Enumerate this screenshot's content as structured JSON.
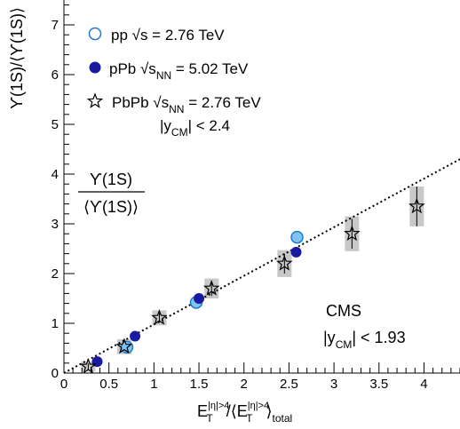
{
  "chart_data": {
    "type": "scatter",
    "title": "",
    "xlabel": {
      "base": "E",
      "sub": "T",
      "sup": "|η|>4",
      "mid": "/⟨E",
      "sub2": "T",
      "sup2": "|η|>4",
      "close": "⟩",
      "sub3": "total"
    },
    "ylabel": "ϒ(1S)/⟨ϒ(1S)⟩",
    "inset_label": {
      "numerator": "ϒ(1S)",
      "denominator": "⟨ϒ(1S)⟩"
    },
    "xlim": [
      0,
      4.4
    ],
    "ylim": [
      0,
      7.5
    ],
    "x_ticks": [
      "0",
      "0.5",
      "1",
      "1.5",
      "2",
      "2.5",
      "3",
      "3.5",
      "4"
    ],
    "y_ticks": [
      "0",
      "1",
      "2",
      "3",
      "4",
      "5",
      "6",
      "7"
    ],
    "legend_position": "top-left",
    "series": [
      {
        "name": "pp",
        "name_extra": "√s = 2.76 TeV",
        "marker": "open-circle",
        "color": "#1f78c8",
        "fill": "#7fc4f0",
        "points": [
          {
            "x": 0.7,
            "y": 0.52
          },
          {
            "x": 1.47,
            "y": 1.42
          },
          {
            "x": 2.59,
            "y": 2.73
          }
        ]
      },
      {
        "name": "pPb",
        "name_extra_prefix": "√s",
        "name_extra_sub": "NN",
        "name_extra_suffix": " = 5.02 TeV",
        "marker": "filled-circle",
        "color": "#1a1aa0",
        "points": [
          {
            "x": 0.37,
            "y": 0.23
          },
          {
            "x": 0.79,
            "y": 0.74
          },
          {
            "x": 1.5,
            "y": 1.5
          },
          {
            "x": 2.58,
            "y": 2.43
          }
        ]
      },
      {
        "name": "PbPb",
        "name_extra_prefix": "√s",
        "name_extra_sub": "NN",
        "name_extra_suffix": " = 2.76 TeV",
        "name_line2_prefix": "|y",
        "name_line2_sub": "CM",
        "name_line2_suffix": "| < 2.4",
        "marker": "open-star",
        "color": "#000000",
        "points": [
          {
            "x": 0.27,
            "y": 0.13,
            "yerr": 0.06,
            "syst": 0.1
          },
          {
            "x": 0.67,
            "y": 0.53,
            "yerr": 0.08,
            "syst": 0.15
          },
          {
            "x": 1.06,
            "y": 1.11,
            "yerr": 0.1,
            "syst": 0.15
          },
          {
            "x": 1.64,
            "y": 1.7,
            "yerr": 0.15,
            "syst": 0.2
          },
          {
            "x": 2.45,
            "y": 2.2,
            "yerr": 0.2,
            "syst": 0.27
          },
          {
            "x": 3.2,
            "y": 2.8,
            "yerr": 0.3,
            "syst": 0.35
          },
          {
            "x": 3.92,
            "y": 3.35,
            "yerr": 0.4,
            "syst": 0.4
          }
        ]
      }
    ],
    "fit_line": {
      "style": "dotted",
      "x": [
        0,
        4.4
      ],
      "y": [
        0,
        4.3
      ]
    },
    "annotations": {
      "experiment": "CMS",
      "rapidity_prefix": "|y",
      "rapidity_sub": "CM",
      "rapidity_suffix": "| < 1.93"
    }
  }
}
